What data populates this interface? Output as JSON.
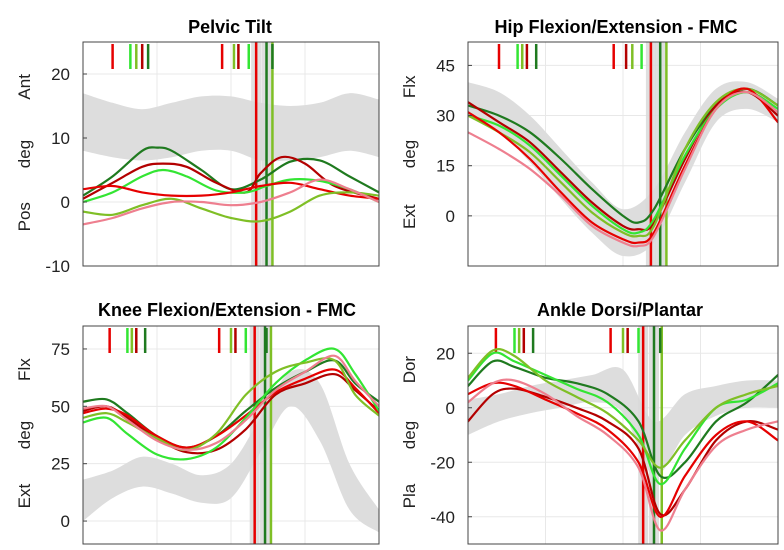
{
  "series_colors": {
    "dark_green": "#1f7a1f",
    "light_green": "#33e533",
    "yellow_green": "#7fbf26",
    "dark_red": "#b30000",
    "red": "#e60000",
    "pink": "#ee7f8f",
    "normative_band": "#dddddd",
    "gridline": "#e8e8e8"
  },
  "chart_data": [
    {
      "type": "line",
      "title": "Pelvic Tilt",
      "ylabel_pos": "Ant",
      "ylabel_mid": "deg",
      "ylabel_neg": "Pos",
      "xlim": [
        0,
        100
      ],
      "ylim": [
        -10,
        25
      ],
      "yticks": [
        -10,
        0,
        10,
        20
      ],
      "grid": true,
      "band": {
        "x": [
          0,
          10,
          20,
          30,
          40,
          50,
          60,
          70,
          80,
          90,
          100
        ],
        "upper": [
          17,
          15.5,
          14.5,
          15.5,
          16.5,
          16.5,
          15.5,
          15,
          15.5,
          17,
          16
        ],
        "lower": [
          8,
          7,
          6.5,
          7,
          8,
          8,
          6.5,
          6.5,
          7,
          8,
          7
        ]
      },
      "events": [
        {
          "x": 58.5,
          "color": "red",
          "shaded": true
        },
        {
          "x": 62,
          "color": "green",
          "shaded": true
        },
        {
          "x": 64,
          "color": "yellow_green",
          "shaded": false
        }
      ],
      "event_marks_top": [
        {
          "x": 10,
          "color": "red"
        },
        {
          "x": 16,
          "color": "light_green"
        },
        {
          "x": 18,
          "color": "yellow_green"
        },
        {
          "x": 20,
          "color": "dark_red"
        },
        {
          "x": 22,
          "color": "dark_green"
        },
        {
          "x": 47,
          "color": "red"
        },
        {
          "x": 51,
          "color": "yellow_green"
        },
        {
          "x": 52.5,
          "color": "dark_red"
        },
        {
          "x": 56,
          "color": "light_green"
        },
        {
          "x": 64,
          "color": "dark_green"
        }
      ],
      "series": [
        {
          "color": "dark_green",
          "x": [
            0,
            10,
            20,
            25,
            30,
            40,
            50,
            60,
            70,
            80,
            90,
            100
          ],
          "y": [
            1,
            4,
            8,
            8.5,
            8,
            5,
            2,
            3.5,
            6.3,
            6.5,
            4,
            1.5
          ]
        },
        {
          "color": "dark_red",
          "x": [
            0,
            10,
            20,
            27,
            35,
            45,
            55,
            60,
            67,
            75,
            85,
            100
          ],
          "y": [
            0.5,
            3,
            5.5,
            6,
            5.5,
            3,
            1.5,
            4.5,
            7,
            6,
            2.5,
            0.5
          ]
        },
        {
          "color": "light_green",
          "x": [
            0,
            10,
            20,
            27,
            35,
            45,
            55,
            62,
            70,
            80,
            90,
            100
          ],
          "y": [
            0,
            1.5,
            4,
            5,
            4,
            1.8,
            1.5,
            2.5,
            3.5,
            3.3,
            2,
            0
          ]
        },
        {
          "color": "red",
          "x": [
            0,
            10,
            20,
            30,
            40,
            50,
            60,
            70,
            80,
            90,
            100
          ],
          "y": [
            2,
            2.5,
            1.5,
            1,
            1,
            1.5,
            2.5,
            3,
            2,
            1,
            0.5
          ]
        },
        {
          "color": "yellow_green",
          "x": [
            0,
            10,
            20,
            30,
            40,
            50,
            60,
            70,
            80,
            90,
            100
          ],
          "y": [
            -1.5,
            -2,
            -0.5,
            0.5,
            -1,
            -2.5,
            -3,
            -1.5,
            1,
            1.5,
            1
          ]
        },
        {
          "color": "pink",
          "x": [
            0,
            10,
            20,
            30,
            40,
            50,
            60,
            70,
            80,
            90,
            100
          ],
          "y": [
            -3.5,
            -2.5,
            -1,
            0,
            0,
            -0.5,
            0,
            1.5,
            3.5,
            2,
            0
          ]
        }
      ]
    },
    {
      "type": "line",
      "title": "Hip Flexion/Extension - FMC",
      "ylabel_pos": "Flx",
      "ylabel_mid": "deg",
      "ylabel_neg": "Ext",
      "xlim": [
        0,
        100
      ],
      "ylim": [
        -15,
        52
      ],
      "yticks": [
        0,
        15,
        30,
        45
      ],
      "grid": true,
      "band": {
        "x": [
          0,
          10,
          20,
          30,
          40,
          50,
          60,
          70,
          80,
          90,
          100
        ],
        "upper": [
          40,
          37,
          30,
          20,
          10,
          2,
          8,
          25,
          38,
          40,
          35
        ],
        "lower": [
          30,
          25,
          16,
          5,
          -5,
          -12,
          -8,
          10,
          28,
          32,
          28
        ]
      },
      "events": [
        {
          "x": 59,
          "color": "red",
          "shaded": true
        },
        {
          "x": 62,
          "color": "green",
          "shaded": true
        },
        {
          "x": 64,
          "color": "yellow_green",
          "shaded": false
        }
      ],
      "event_marks_top": [
        {
          "x": 10,
          "color": "red"
        },
        {
          "x": 16,
          "color": "light_green"
        },
        {
          "x": 17.5,
          "color": "yellow_green"
        },
        {
          "x": 19,
          "color": "dark_red"
        },
        {
          "x": 22,
          "color": "dark_green"
        },
        {
          "x": 47,
          "color": "red"
        },
        {
          "x": 51,
          "color": "dark_red"
        },
        {
          "x": 53,
          "color": "yellow_green"
        },
        {
          "x": 56,
          "color": "light_green"
        }
      ],
      "series": [
        {
          "color": "dark_green",
          "x": [
            0,
            10,
            20,
            30,
            40,
            50,
            55,
            60,
            70,
            80,
            90,
            100
          ],
          "y": [
            33,
            30,
            25,
            17,
            8,
            0,
            -2,
            2,
            20,
            33,
            38,
            33
          ]
        },
        {
          "color": "dark_red",
          "x": [
            0,
            10,
            20,
            30,
            40,
            50,
            55,
            60,
            70,
            80,
            90,
            100
          ],
          "y": [
            34,
            28,
            22,
            13,
            4,
            -3,
            -4,
            -2,
            17,
            33,
            37,
            30
          ]
        },
        {
          "color": "light_green",
          "x": [
            0,
            10,
            20,
            30,
            40,
            50,
            55,
            60,
            70,
            80,
            90,
            100
          ],
          "y": [
            30,
            27,
            21,
            12,
            3,
            -4,
            -5,
            -1,
            18,
            32,
            37,
            32
          ]
        },
        {
          "color": "yellow_green",
          "x": [
            0,
            10,
            20,
            30,
            40,
            50,
            55,
            60,
            70,
            80,
            90,
            100
          ],
          "y": [
            30,
            25,
            19,
            10,
            1,
            -5,
            -6,
            -3,
            20,
            34,
            38,
            33
          ]
        },
        {
          "color": "red",
          "x": [
            0,
            10,
            20,
            30,
            40,
            50,
            55,
            60,
            70,
            80,
            90,
            100
          ],
          "y": [
            31,
            25,
            17,
            7,
            -2,
            -7,
            -8,
            -5,
            15,
            32,
            38,
            28
          ]
        },
        {
          "color": "pink",
          "x": [
            0,
            10,
            20,
            30,
            40,
            50,
            55,
            60,
            70,
            80,
            90,
            100
          ],
          "y": [
            25,
            20,
            14,
            6,
            -3,
            -8,
            -9,
            -6,
            14,
            32,
            37,
            31
          ]
        }
      ]
    },
    {
      "type": "line",
      "title": "Knee Flexion/Extension - FMC",
      "ylabel_pos": "Flx",
      "ylabel_mid": "deg",
      "ylabel_neg": "Ext",
      "xlim": [
        0,
        100
      ],
      "ylim": [
        -10,
        85
      ],
      "yticks": [
        0,
        25,
        50,
        75
      ],
      "grid": true,
      "band": {
        "x": [
          0,
          10,
          20,
          30,
          40,
          50,
          60,
          70,
          80,
          90,
          100
        ],
        "upper": [
          18,
          22,
          28,
          25,
          20,
          25,
          45,
          65,
          60,
          25,
          5
        ],
        "lower": [
          0,
          10,
          15,
          12,
          8,
          10,
          30,
          50,
          35,
          5,
          -5
        ]
      },
      "events": [
        {
          "x": 58,
          "color": "red",
          "shaded": true
        },
        {
          "x": 61.5,
          "color": "green",
          "shaded": true
        },
        {
          "x": 63.5,
          "color": "yellow_green",
          "shaded": false
        }
      ],
      "event_marks_top": [
        {
          "x": 9,
          "color": "red"
        },
        {
          "x": 15,
          "color": "light_green"
        },
        {
          "x": 16.5,
          "color": "yellow_green"
        },
        {
          "x": 18,
          "color": "dark_red"
        },
        {
          "x": 21,
          "color": "dark_green"
        },
        {
          "x": 46,
          "color": "red"
        },
        {
          "x": 50,
          "color": "yellow_green"
        },
        {
          "x": 51.5,
          "color": "dark_red"
        },
        {
          "x": 55,
          "color": "light_green"
        },
        {
          "x": 62,
          "color": "dark_green"
        }
      ],
      "series": [
        {
          "color": "dark_green",
          "x": [
            0,
            8,
            15,
            25,
            35,
            45,
            55,
            65,
            75,
            85,
            92,
            100
          ],
          "y": [
            52,
            53,
            47,
            37,
            32,
            37,
            48,
            58,
            65,
            70,
            60,
            52
          ]
        },
        {
          "color": "dark_red",
          "x": [
            0,
            8,
            15,
            25,
            35,
            45,
            55,
            65,
            75,
            85,
            92,
            100
          ],
          "y": [
            48,
            50,
            45,
            36,
            30,
            31,
            40,
            55,
            60,
            64,
            57,
            48
          ]
        },
        {
          "color": "red",
          "x": [
            0,
            8,
            15,
            25,
            35,
            45,
            55,
            65,
            75,
            85,
            92,
            100
          ],
          "y": [
            47,
            49,
            46,
            37,
            32,
            37,
            46,
            56,
            62,
            66,
            58,
            47
          ]
        },
        {
          "color": "light_green",
          "x": [
            0,
            8,
            15,
            25,
            35,
            45,
            55,
            65,
            75,
            85,
            92,
            100
          ],
          "y": [
            43,
            45,
            38,
            29,
            27,
            32,
            45,
            60,
            70,
            75,
            64,
            48
          ]
        },
        {
          "color": "yellow_green",
          "x": [
            0,
            8,
            15,
            25,
            35,
            45,
            55,
            65,
            75,
            85,
            92,
            100
          ],
          "y": [
            45,
            47,
            43,
            36,
            31,
            38,
            55,
            65,
            69,
            70,
            55,
            46
          ]
        },
        {
          "color": "pink",
          "x": [
            0,
            8,
            15,
            25,
            35,
            45,
            55,
            65,
            75,
            85,
            92,
            100
          ],
          "y": [
            49,
            50,
            44,
            35,
            31,
            34,
            44,
            57,
            65,
            72,
            61,
            50
          ]
        }
      ]
    },
    {
      "type": "line",
      "title": "Ankle Dorsi/Plantar",
      "ylabel_pos": "Dor",
      "ylabel_mid": "deg",
      "ylabel_neg": "Pla",
      "xlim": [
        0,
        100
      ],
      "ylim": [
        -50,
        30
      ],
      "yticks": [
        -40,
        -20,
        0,
        20
      ],
      "grid": true,
      "band": {
        "x": [
          0,
          10,
          20,
          30,
          40,
          50,
          60,
          70,
          80,
          90,
          100
        ],
        "upper": [
          3,
          5,
          8,
          10,
          12,
          14,
          -5,
          5,
          8,
          10,
          10
        ],
        "lower": [
          -10,
          -5,
          -2,
          0,
          2,
          -2,
          -25,
          -10,
          -3,
          0,
          0
        ]
      },
      "events": [
        {
          "x": 56.5,
          "color": "red",
          "shaded": true
        },
        {
          "x": 60,
          "color": "green",
          "shaded": true
        },
        {
          "x": 62.5,
          "color": "yellow_green",
          "shaded": false
        }
      ],
      "event_marks_top": [
        {
          "x": 9,
          "color": "red"
        },
        {
          "x": 15,
          "color": "light_green"
        },
        {
          "x": 16.5,
          "color": "yellow_green"
        },
        {
          "x": 18,
          "color": "dark_red"
        },
        {
          "x": 21,
          "color": "dark_green"
        },
        {
          "x": 46,
          "color": "red"
        },
        {
          "x": 50,
          "color": "yellow_green"
        },
        {
          "x": 51.5,
          "color": "dark_red"
        },
        {
          "x": 55,
          "color": "light_green"
        },
        {
          "x": 62,
          "color": "dark_green"
        }
      ],
      "series": [
        {
          "color": "dark_green",
          "x": [
            0,
            8,
            15,
            25,
            35,
            45,
            55,
            62,
            70,
            80,
            90,
            100
          ],
          "y": [
            8,
            17,
            15,
            11,
            9,
            5,
            -5,
            -25,
            -20,
            -5,
            2,
            12
          ]
        },
        {
          "color": "light_green",
          "x": [
            0,
            8,
            15,
            25,
            35,
            45,
            55,
            62,
            70,
            80,
            90,
            100
          ],
          "y": [
            10,
            20,
            17,
            12,
            7,
            2,
            -10,
            -28,
            -15,
            0,
            3,
            9
          ]
        },
        {
          "color": "yellow_green",
          "x": [
            0,
            8,
            15,
            25,
            35,
            45,
            55,
            62,
            70,
            80,
            90,
            100
          ],
          "y": [
            11,
            21,
            19,
            10,
            4,
            -2,
            -12,
            -22,
            -12,
            0,
            5,
            8
          ]
        },
        {
          "color": "dark_red",
          "x": [
            0,
            8,
            15,
            25,
            35,
            45,
            55,
            62,
            70,
            80,
            90,
            100
          ],
          "y": [
            -5,
            5,
            7,
            4,
            0,
            -5,
            -15,
            -39,
            -30,
            -12,
            -5,
            -8
          ]
        },
        {
          "color": "red",
          "x": [
            0,
            8,
            15,
            25,
            35,
            45,
            55,
            62,
            70,
            80,
            90,
            100
          ],
          "y": [
            5,
            9,
            8,
            3,
            -2,
            -8,
            -20,
            -40,
            -25,
            -10,
            -5,
            -12
          ]
        },
        {
          "color": "pink",
          "x": [
            0,
            8,
            15,
            25,
            35,
            45,
            55,
            62,
            70,
            80,
            90,
            100
          ],
          "y": [
            2,
            9,
            10,
            5,
            -3,
            -10,
            -22,
            -45,
            -30,
            -14,
            -8,
            -5
          ]
        }
      ]
    }
  ]
}
